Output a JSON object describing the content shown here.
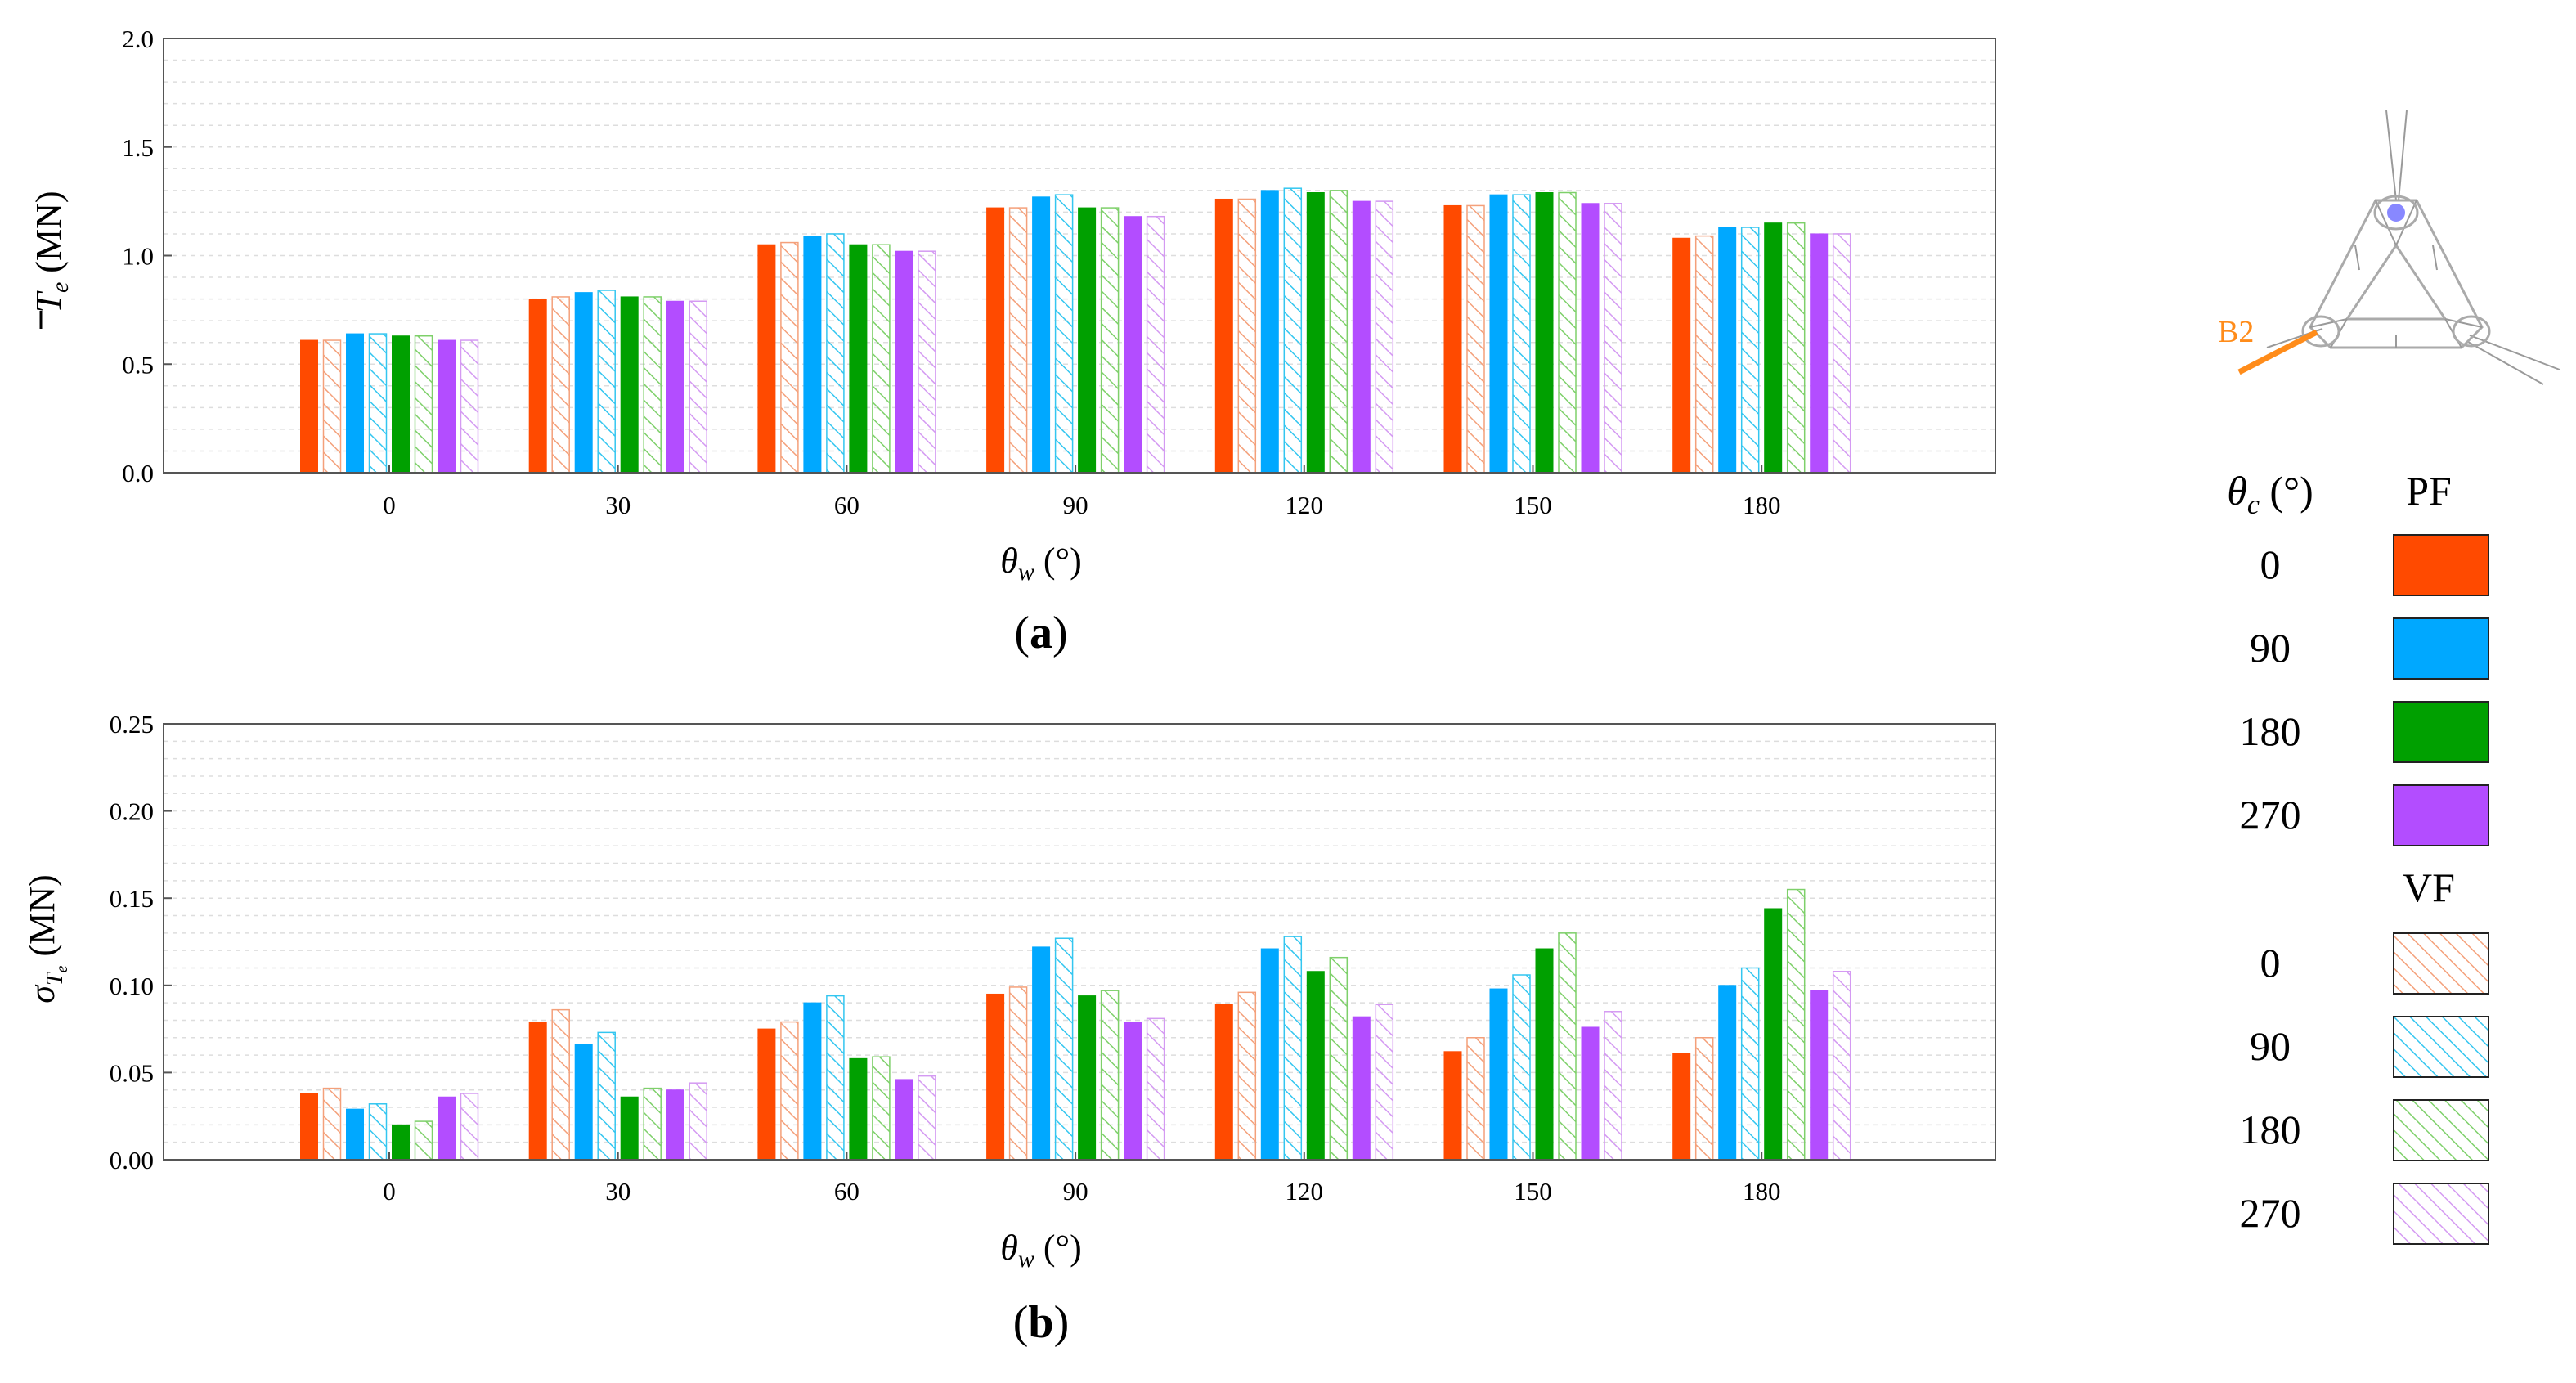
{
  "chart_data": [
    {
      "type": "bar",
      "panel": "a",
      "panel_label": "(a)",
      "xlabel": "θw (°)",
      "ylabel": "Te (MN)",
      "ylim": [
        0,
        2.0
      ],
      "yticks": [
        "0.0",
        "0.5",
        "1.0",
        "1.5",
        "2.0"
      ],
      "categories": [
        "0",
        "30",
        "60",
        "90",
        "120",
        "150",
        "180"
      ],
      "grid": "horizontal minor",
      "series": [
        {
          "case": "PF",
          "theta_c": "0",
          "values": [
            0.61,
            0.8,
            1.05,
            1.22,
            1.26,
            1.23,
            1.08
          ]
        },
        {
          "case": "VF",
          "theta_c": "0",
          "values": [
            0.61,
            0.81,
            1.06,
            1.22,
            1.26,
            1.23,
            1.09
          ]
        },
        {
          "case": "PF",
          "theta_c": "90",
          "values": [
            0.64,
            0.83,
            1.09,
            1.27,
            1.3,
            1.28,
            1.13
          ]
        },
        {
          "case": "VF",
          "theta_c": "90",
          "values": [
            0.64,
            0.84,
            1.1,
            1.28,
            1.31,
            1.28,
            1.13
          ]
        },
        {
          "case": "PF",
          "theta_c": "180",
          "values": [
            0.63,
            0.81,
            1.05,
            1.22,
            1.29,
            1.29,
            1.15
          ]
        },
        {
          "case": "VF",
          "theta_c": "180",
          "values": [
            0.63,
            0.81,
            1.05,
            1.22,
            1.3,
            1.29,
            1.15
          ]
        },
        {
          "case": "PF",
          "theta_c": "270",
          "values": [
            0.61,
            0.79,
            1.02,
            1.18,
            1.25,
            1.24,
            1.1
          ]
        },
        {
          "case": "VF",
          "theta_c": "270",
          "values": [
            0.61,
            0.79,
            1.02,
            1.18,
            1.25,
            1.24,
            1.1
          ]
        }
      ]
    },
    {
      "type": "bar",
      "panel": "b",
      "panel_label": "(b)",
      "xlabel": "θw (°)",
      "ylabel": "σTe (MN)",
      "ylim": [
        0,
        0.25
      ],
      "yticks": [
        "0.00",
        "0.05",
        "0.10",
        "0.15",
        "0.20",
        "0.25"
      ],
      "categories": [
        "0",
        "30",
        "60",
        "90",
        "120",
        "150",
        "180"
      ],
      "grid": "horizontal minor",
      "series": [
        {
          "case": "PF",
          "theta_c": "0",
          "values": [
            0.038,
            0.079,
            0.075,
            0.095,
            0.089,
            0.062,
            0.061
          ]
        },
        {
          "case": "VF",
          "theta_c": "0",
          "values": [
            0.041,
            0.086,
            0.079,
            0.099,
            0.096,
            0.07,
            0.07
          ]
        },
        {
          "case": "PF",
          "theta_c": "90",
          "values": [
            0.029,
            0.066,
            0.09,
            0.122,
            0.121,
            0.098,
            0.1
          ]
        },
        {
          "case": "VF",
          "theta_c": "90",
          "values": [
            0.032,
            0.073,
            0.094,
            0.127,
            0.128,
            0.106,
            0.11
          ]
        },
        {
          "case": "PF",
          "theta_c": "180",
          "values": [
            0.02,
            0.036,
            0.058,
            0.094,
            0.108,
            0.121,
            0.144
          ]
        },
        {
          "case": "VF",
          "theta_c": "180",
          "values": [
            0.022,
            0.041,
            0.059,
            0.097,
            0.116,
            0.13,
            0.155
          ]
        },
        {
          "case": "PF",
          "theta_c": "270",
          "values": [
            0.036,
            0.04,
            0.046,
            0.079,
            0.082,
            0.076,
            0.097
          ]
        },
        {
          "case": "VF",
          "theta_c": "270",
          "values": [
            0.038,
            0.044,
            0.048,
            0.081,
            0.089,
            0.085,
            0.108
          ]
        }
      ]
    }
  ],
  "legend": {
    "header_theta": "θc (°)",
    "header_pf": "PF",
    "header_vf": "VF",
    "pf_rows": [
      {
        "label": "0",
        "color": "#FF4A00"
      },
      {
        "label": "90",
        "color": "#00A8FF"
      },
      {
        "label": "180",
        "color": "#00A000"
      },
      {
        "label": "270",
        "color": "#B34DFF"
      }
    ],
    "vf_rows": [
      {
        "label": "0",
        "color": "#F4A07A"
      },
      {
        "label": "90",
        "color": "#33C6F0"
      },
      {
        "label": "180",
        "color": "#7ED06A"
      },
      {
        "label": "270",
        "color": "#D49AF2"
      }
    ]
  },
  "diagram": {
    "label": "B2",
    "highlight_color": "#FF8C1A",
    "node_color": "#8888FF"
  }
}
